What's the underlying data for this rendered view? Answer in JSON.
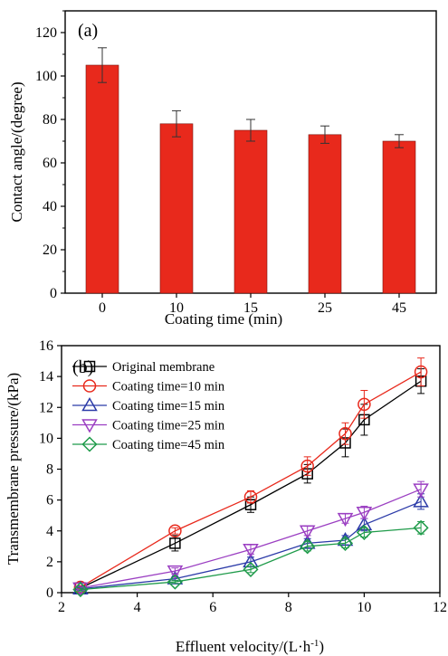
{
  "chart_data": [
    {
      "type": "bar",
      "panel_label": "(a)",
      "categories": [
        "0",
        "10",
        "15",
        "25",
        "45"
      ],
      "values": [
        105,
        78,
        75,
        73,
        70
      ],
      "errors": [
        8,
        6,
        5,
        4,
        3
      ],
      "xlabel": "Coating time (min)",
      "ylabel": "Contact angle/(degree)",
      "ylim": [
        0,
        130
      ],
      "yticks": [
        0,
        20,
        40,
        60,
        80,
        100,
        120
      ],
      "bar_color": "#e8291c",
      "grid": false
    },
    {
      "type": "line",
      "panel_label": "(b)",
      "xlabel": "Effluent velocity/(L·h",
      "xlabel_sup": "-1",
      "xlabel_end": ")",
      "ylabel": "Transmembrane pressure/(kPa)",
      "xlim": [
        2,
        12
      ],
      "ylim": [
        0,
        16
      ],
      "xticks": [
        2,
        4,
        6,
        8,
        10,
        12
      ],
      "yticks": [
        0,
        2,
        4,
        6,
        8,
        10,
        12,
        14,
        16
      ],
      "legend_position": "top-left",
      "grid": false,
      "x": [
        2.5,
        5,
        7,
        8.5,
        9.5,
        10,
        11.5
      ],
      "series": [
        {
          "name": "Original membrane",
          "marker": "square",
          "color": "#000000",
          "values": [
            0.3,
            3.2,
            5.7,
            7.7,
            9.7,
            11.2,
            13.7
          ],
          "errors": [
            0.1,
            0.5,
            0.5,
            0.6,
            0.9,
            1.0,
            0.8
          ]
        },
        {
          "name": "Coating time=10 min",
          "marker": "circle",
          "color": "#e8291c",
          "values": [
            0.35,
            4.0,
            6.2,
            8.2,
            10.3,
            12.2,
            14.3
          ],
          "errors": [
            0.1,
            0.2,
            0.4,
            0.6,
            0.7,
            0.9,
            0.9
          ]
        },
        {
          "name": "Coating time=15 min",
          "marker": "triangle-up",
          "color": "#2b3aa8",
          "values": [
            0.25,
            0.9,
            2.0,
            3.2,
            3.4,
            4.4,
            5.9
          ],
          "errors": [
            0.1,
            0.1,
            0.3,
            0.3,
            0.3,
            0.4,
            0.5
          ]
        },
        {
          "name": "Coating time=25 min",
          "marker": "triangle-down",
          "color": "#9b3fc2",
          "values": [
            0.3,
            1.4,
            2.8,
            4.0,
            4.8,
            5.2,
            6.7
          ],
          "errors": [
            0.1,
            0.2,
            0.3,
            0.3,
            0.3,
            0.4,
            0.5
          ]
        },
        {
          "name": "Coating time=45 min",
          "marker": "diamond",
          "color": "#1f9b4a",
          "values": [
            0.2,
            0.7,
            1.5,
            3.0,
            3.2,
            3.9,
            4.2
          ],
          "errors": [
            0.1,
            0.1,
            0.2,
            0.3,
            0.3,
            0.3,
            0.4
          ]
        }
      ]
    }
  ]
}
